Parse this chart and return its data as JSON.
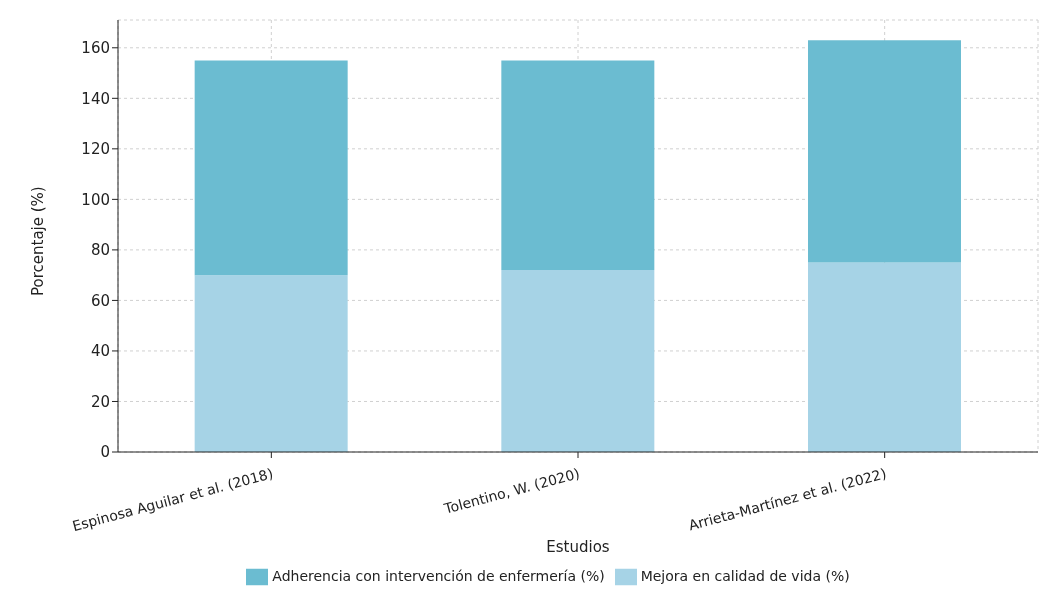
{
  "chart_data": {
    "type": "bar",
    "stacked": true,
    "categories": [
      "Espinosa Aguilar et al. (2018)",
      "Tolentino, W. (2020)",
      "Arrieta-Martínez et al. (2022)"
    ],
    "series": [
      {
        "name": "Mejora en calidad de vida (%)",
        "color": "#a6d3e6",
        "values": [
          70,
          72,
          75
        ]
      },
      {
        "name": "Adherencia con intervención de enfermería (%)",
        "color": "#6bbcd1",
        "values": [
          85,
          83,
          88
        ]
      }
    ],
    "xlabel": "Estudios",
    "ylabel": "Porcentaje (%)",
    "ylim": [
      0,
      171
    ],
    "yticks": [
      0,
      20,
      40,
      60,
      80,
      100,
      120,
      140,
      160
    ],
    "grid": true,
    "legend": "bottom"
  }
}
